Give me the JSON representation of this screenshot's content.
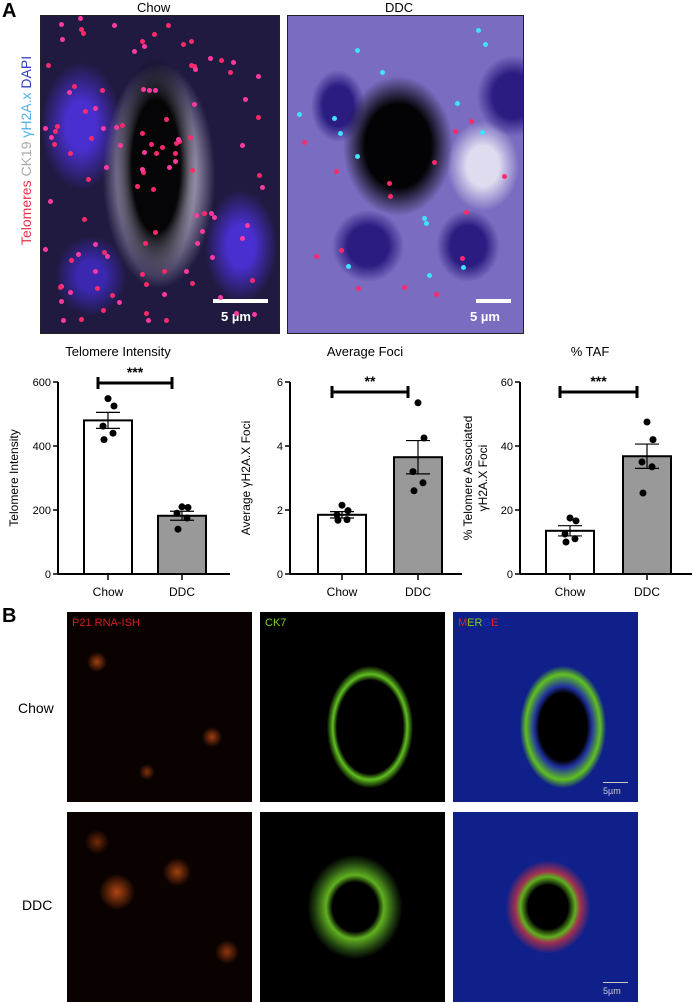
{
  "panel_a": {
    "letter": "A",
    "image_titles": [
      "Chow",
      "DDC"
    ],
    "stain_label": [
      {
        "text": "Telomeres",
        "color": "#e8304a"
      },
      {
        "text": " CK19 ",
        "color": "#aaaaaa"
      },
      {
        "text": "γH2A.x",
        "color": "#4fb0e8"
      },
      {
        "text": " DAPI",
        "color": "#3040c0"
      }
    ],
    "scale_bar": "5 µm"
  },
  "chart_data": [
    {
      "type": "bar",
      "title": "Telomere Intensity",
      "ylabel": "Telomere Intensity",
      "categories": [
        "Chow",
        "DDC"
      ],
      "values": [
        480,
        182
      ],
      "sem": [
        25,
        14
      ],
      "points": [
        [
          548,
          525,
          462,
          440,
          420
        ],
        [
          210,
          208,
          190,
          175,
          140
        ]
      ],
      "ylim": [
        0,
        600
      ],
      "yticks": [
        0,
        200,
        400,
        600
      ],
      "significance": "***",
      "bar_colors": [
        "#ffffff",
        "#999999"
      ]
    },
    {
      "type": "bar",
      "title": "Average Foci",
      "ylabel": "Average γH2A.X Foci",
      "categories": [
        "Chow",
        "DDC"
      ],
      "values": [
        1.85,
        3.65
      ],
      "sem": [
        0.1,
        0.52
      ],
      "points": [
        [
          2.15,
          1.98,
          1.85,
          1.7,
          1.68
        ],
        [
          5.35,
          4.25,
          3.2,
          2.85,
          2.6
        ]
      ],
      "ylim": [
        0,
        6
      ],
      "yticks": [
        0,
        2,
        4,
        6
      ],
      "significance": "**",
      "bar_colors": [
        "#ffffff",
        "#999999"
      ]
    },
    {
      "type": "bar",
      "title": "% TAF",
      "ylabel": [
        "% Telomere Associated",
        "γH2A.X Foci"
      ],
      "categories": [
        "Chow",
        "DDC"
      ],
      "values": [
        13.5,
        36.8
      ],
      "sem": [
        1.6,
        3.8
      ],
      "points": [
        [
          17.5,
          16.6,
          12.5,
          11,
          10
        ],
        [
          47.5,
          42,
          35,
          33.5,
          25.3
        ]
      ],
      "ylim": [
        0,
        60
      ],
      "yticks": [
        0,
        20,
        40,
        60
      ],
      "significance": "***",
      "bar_colors": [
        "#ffffff",
        "#999999"
      ]
    }
  ],
  "panel_b": {
    "letter": "B",
    "rows": [
      "Chow",
      "DDC"
    ],
    "columns": [
      {
        "label": "P21 RNA-ISH",
        "color": "#d02020"
      },
      {
        "label": "CK7",
        "color": "#7ed020"
      }
    ],
    "merge_label": [
      {
        "text": "M",
        "color": "#e02020"
      },
      {
        "text": "ER",
        "color": "#7ed020"
      },
      {
        "text": "G",
        "color": "#2030d0"
      },
      {
        "text": "E",
        "color": "#e02020"
      }
    ],
    "scale_bar": "5µm"
  }
}
